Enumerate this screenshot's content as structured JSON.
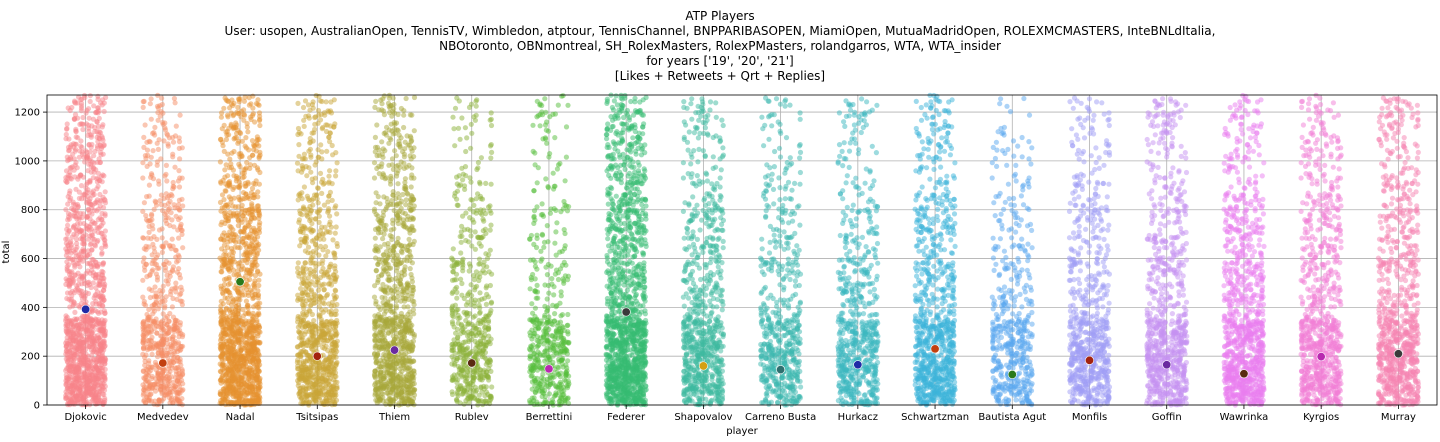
{
  "chart_data": {
    "type": "scatter",
    "subtype": "strip",
    "title": [
      "ATP Players",
      "User: usopen, AustralianOpen, TennisTV, Wimbledon, atptour, TennisChannel, BNPPARIBASOPEN, MiamiOpen, MutuaMadridOpen, ROLEXMCMASTERS, InteBNLdItalia,",
      "NBOtoronto, OBNmontreal, SH_RolexMasters, RolexPMasters, rolandgarros, WTA, WTA_insider",
      "for years ['19', '20', '21']",
      "[Likes + Retweets + Qrt + Replies]"
    ],
    "xlabel": "player",
    "ylabel": "total",
    "ylim": [
      0,
      1270
    ],
    "yticks": [
      0,
      200,
      400,
      600,
      800,
      1000,
      1200
    ],
    "grid": true,
    "categories": [
      "Djokovic",
      "Medvedev",
      "Nadal",
      "Tsitsipas",
      "Thiem",
      "Rublev",
      "Berrettini",
      "Federer",
      "Shapovalov",
      "Carreno Busta",
      "Hurkacz",
      "Schwartzman",
      "Bautista Agut",
      "Monfils",
      "Goffin",
      "Wawrinka",
      "Kyrgios",
      "Murray"
    ],
    "colors": [
      "#f7838a",
      "#f58d66",
      "#e6912f",
      "#c9a637",
      "#a8a83a",
      "#8bb23a",
      "#55bd3c",
      "#35bb72",
      "#3ebaa0",
      "#3cb8b0",
      "#3cb7c0",
      "#3cb4d9",
      "#5aa8f0",
      "#9f9ef5",
      "#c591f2",
      "#e97ef0",
      "#f27ed5",
      "#f583b2"
    ],
    "density": [
      0.95,
      0.55,
      0.95,
      0.7,
      0.75,
      0.45,
      0.4,
      1.0,
      0.6,
      0.45,
      0.5,
      0.65,
      0.4,
      0.55,
      0.6,
      0.7,
      0.6,
      0.65
    ],
    "mean_values": [
      392,
      172,
      505,
      200,
      225,
      172,
      148,
      381,
      160,
      145,
      165,
      230,
      125,
      183,
      165,
      128,
      198,
      210
    ],
    "mean_colors": [
      "#1f2aa6",
      "#c23f0f",
      "#2a7a1a",
      "#a3230f",
      "#6a2aa0",
      "#5a2a12",
      "#b82ab0",
      "#3a3a3a",
      "#d4a012",
      "#2f6f6f",
      "#1f2aa6",
      "#c23f0f",
      "#2a7a1a",
      "#a3230f",
      "#6a2aa0",
      "#5a2a12",
      "#b82ab0",
      "#3a3a3a"
    ]
  }
}
